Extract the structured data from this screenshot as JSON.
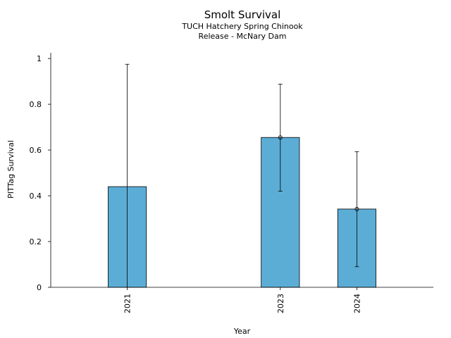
{
  "chart_data": {
    "type": "bar",
    "title": "Smolt Survival",
    "subtitle_lines": [
      "TUCH Hatchery Spring Chinook",
      "Release - McNary Dam"
    ],
    "xlabel": "Year",
    "ylabel": "PITTag Survival",
    "categories": [
      "2021",
      "2023",
      "2024"
    ],
    "x": [
      2021,
      2023,
      2024
    ],
    "xlim": [
      2020,
      2025
    ],
    "values": [
      0.44,
      0.655,
      0.342
    ],
    "error_low": [
      0.0,
      0.42,
      0.09
    ],
    "error_high": [
      0.975,
      0.888,
      0.593
    ],
    "point_markers": [
      false,
      true,
      true
    ],
    "ylim": [
      0,
      1.025
    ],
    "yticks": [
      0,
      0.2,
      0.4,
      0.6,
      0.8,
      1
    ],
    "ytick_labels": [
      "0",
      "0.2",
      "0.4",
      "0.6",
      "0.8",
      "1"
    ],
    "bar_color": "#5badd6",
    "edge_color": "#000000",
    "grid": false
  }
}
